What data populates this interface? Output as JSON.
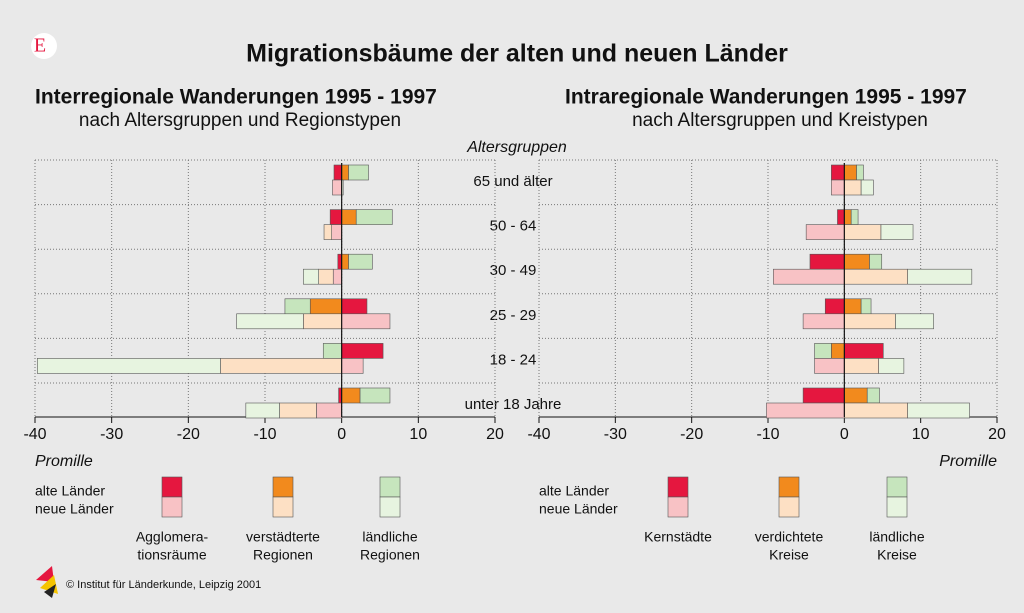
{
  "logo": "E",
  "title": "Migrationsbäume der alten und neuen Länder",
  "age_axis": {
    "title": "Altersgruppen",
    "categories": [
      "65 und älter",
      "50 - 64",
      "30 - 49",
      "25 - 29",
      "18 - 24",
      "unter 18 Jahre"
    ]
  },
  "footer": "© Institut für Länderkunde, Leipzig 2001",
  "chart_data": [
    {
      "type": "bar",
      "title": "Interregionale Wanderungen 1995 - 1997",
      "subtitle": "nach Altersgruppen und Regionstypen",
      "xlabel": "Promille",
      "xlim": [
        -40,
        20
      ],
      "xticks": [
        -40,
        -30,
        -20,
        -10,
        0,
        10,
        20
      ],
      "grid": true,
      "groups": [
        "alte Länder",
        "neue Länder"
      ],
      "series": [
        {
          "name": [
            "Agglomera-",
            "tionsräume"
          ],
          "colors": [
            "#e5173f",
            "#f8c2c5"
          ],
          "values": [
            [
              -1.0,
              -1.5,
              -0.5,
              3.3,
              5.4,
              -0.4
            ],
            [
              -1.2,
              -1.3,
              -1.1,
              6.3,
              2.8,
              -3.3
            ]
          ]
        },
        {
          "name": [
            "verstädterte",
            "Regionen"
          ],
          "colors": [
            "#f28a1d",
            "#fde0c4"
          ],
          "values": [
            [
              0.9,
              1.9,
              0.9,
              -4.1,
              0,
              2.4
            ],
            [
              0,
              -1.0,
              -1.9,
              -5.0,
              -15.8,
              -4.8
            ]
          ]
        },
        {
          "name": [
            "ländliche",
            "Regionen"
          ],
          "colors": [
            "#c6e5bd",
            "#e7f4e0"
          ],
          "values": [
            [
              2.6,
              4.7,
              3.1,
              -3.3,
              -2.4,
              3.9
            ],
            [
              0.2,
              0,
              -2.0,
              -8.7,
              -23.9,
              -4.4
            ]
          ]
        }
      ]
    },
    {
      "type": "bar",
      "title": "Intraregionale Wanderungen 1995 - 1997",
      "subtitle": "nach Altersgruppen und Kreistypen",
      "xlabel": "Promille",
      "xlim": [
        -40,
        20
      ],
      "xticks": [
        -40,
        -30,
        -20,
        -10,
        0,
        10,
        20
      ],
      "grid": true,
      "groups": [
        "alte Länder",
        "neue Länder"
      ],
      "series": [
        {
          "name": [
            "Kernstädte"
          ],
          "colors": [
            "#e5173f",
            "#f8c2c5"
          ],
          "values": [
            [
              -1.7,
              -0.9,
              -4.5,
              -2.5,
              5.1,
              -5.4
            ],
            [
              -1.7,
              -5.0,
              -9.3,
              -5.4,
              -3.9,
              -10.2
            ]
          ]
        },
        {
          "name": [
            "verdichtete",
            "Kreise"
          ],
          "colors": [
            "#f28a1d",
            "#fde0c4"
          ],
          "values": [
            [
              1.6,
              0.9,
              3.3,
              2.2,
              -1.7,
              3.0
            ],
            [
              2.2,
              4.8,
              8.3,
              6.7,
              4.5,
              8.3
            ]
          ]
        },
        {
          "name": [
            "ländliche",
            "Kreise"
          ],
          "colors": [
            "#c6e5bd",
            "#e7f4e0"
          ],
          "values": [
            [
              0.9,
              0.9,
              1.6,
              1.3,
              -2.2,
              1.6
            ],
            [
              1.6,
              4.2,
              8.4,
              5.0,
              3.3,
              8.1
            ]
          ]
        }
      ]
    }
  ]
}
